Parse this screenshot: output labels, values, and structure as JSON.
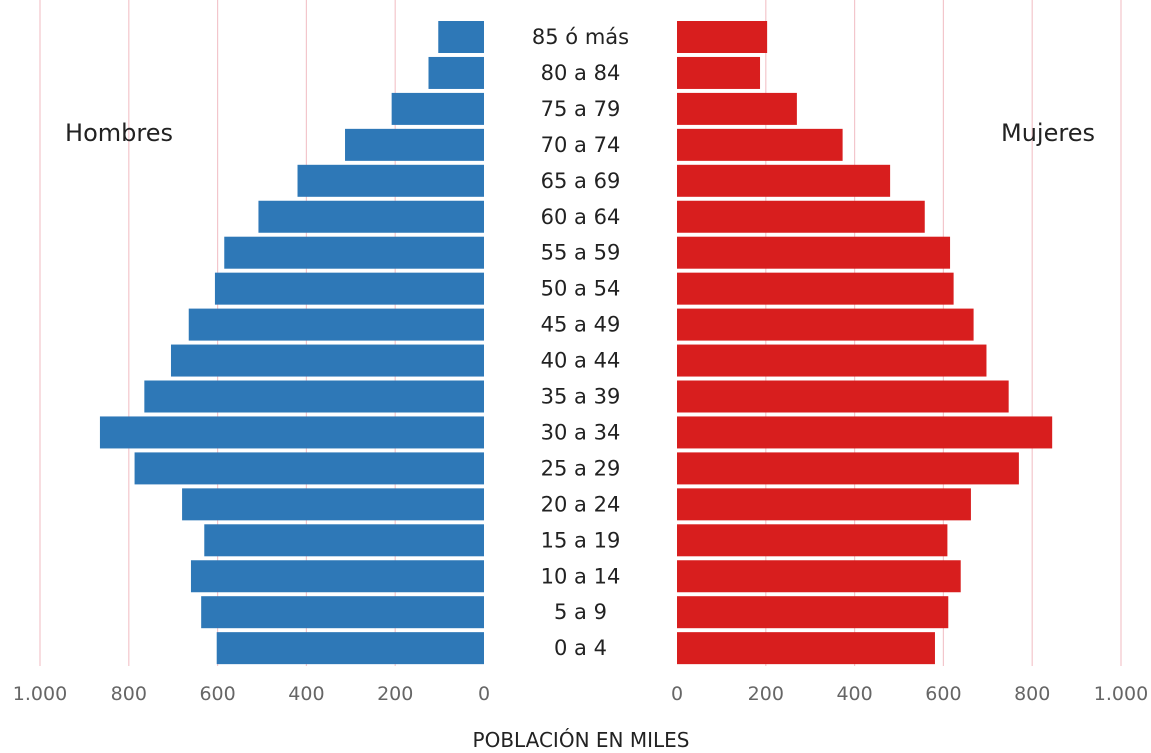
{
  "chart_data": {
    "type": "bar",
    "orientation": "horizontal",
    "layout": "population-pyramid",
    "categories": [
      "85 ó más",
      "80 a 84",
      "75 a 79",
      "70 a 74",
      "65 a 69",
      "60 a 64",
      "55 a 59",
      "50 a 54",
      "45 a 49",
      "40 a 44",
      "35 a 39",
      "30 a 34",
      "25 a 29",
      "20 a 24",
      "15 a 19",
      "10 a 14",
      "5 a 9",
      "0 a 4"
    ],
    "series": [
      {
        "name": "Hombres",
        "side": "left",
        "color": "#2e78b7",
        "values": [
          103,
          125,
          208,
          313,
          420,
          508,
          585,
          606,
          665,
          705,
          765,
          865,
          787,
          680,
          630,
          660,
          637,
          602
        ]
      },
      {
        "name": "Mujeres",
        "side": "right",
        "color": "#d81e1e",
        "values": [
          203,
          187,
          270,
          373,
          480,
          558,
          615,
          623,
          668,
          697,
          747,
          845,
          770,
          662,
          609,
          639,
          611,
          581
        ]
      }
    ],
    "xlabel": "POBLACIÓN EN MILES",
    "xlim": [
      0,
      1000
    ],
    "ticks": [
      0,
      200,
      400,
      600,
      800,
      1000
    ],
    "tick_labels": [
      "0",
      "200",
      "400",
      "600",
      "800",
      "1.000"
    ],
    "grid": true,
    "grid_color": "#f3c6cc"
  }
}
